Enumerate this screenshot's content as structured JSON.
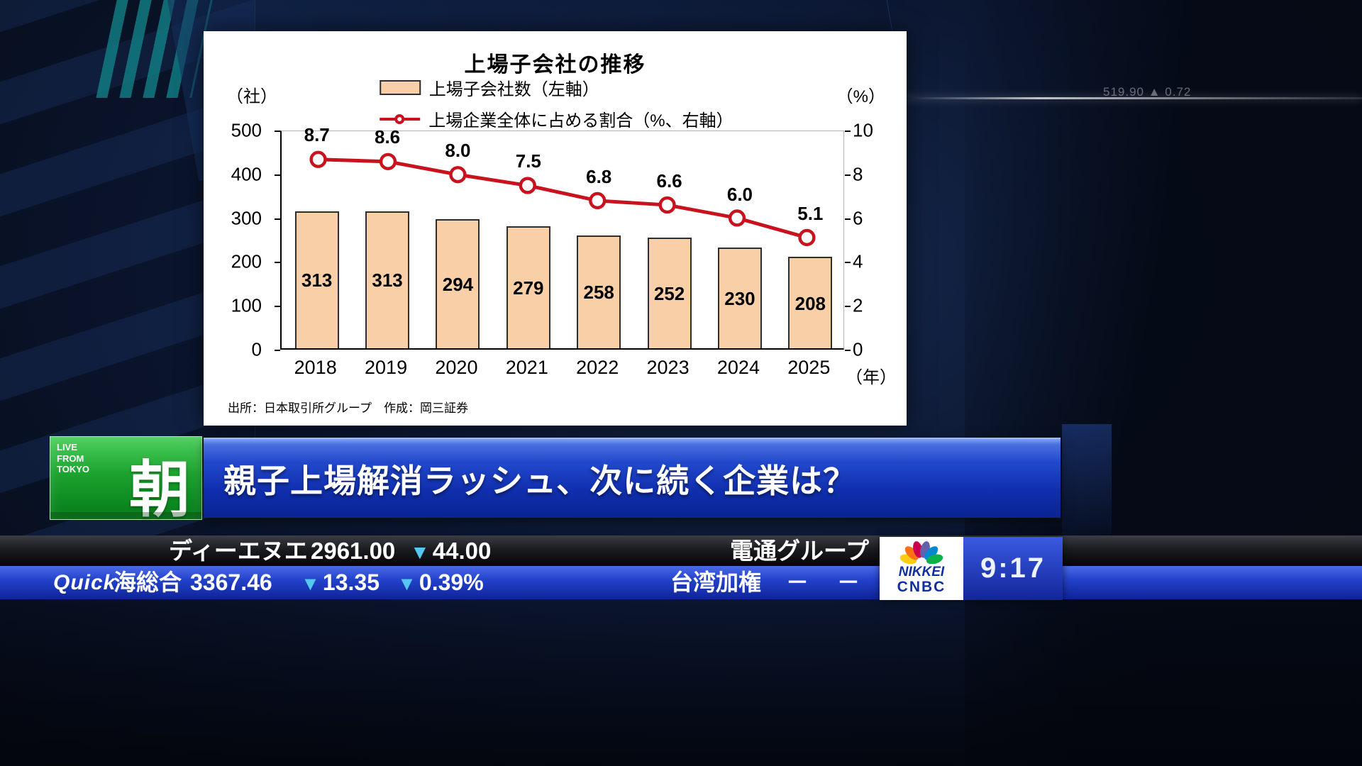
{
  "background": {
    "faint_ticker": "519.90 ▲ 0.72"
  },
  "chart_data": {
    "type": "bar",
    "title": "上場子会社の推移",
    "unit_left": "（社）",
    "unit_right": "（%）",
    "unit_x": "（年）",
    "source": "出所：日本取引所グループ　作成：岡三証券",
    "categories": [
      "2018",
      "2019",
      "2020",
      "2021",
      "2022",
      "2023",
      "2024",
      "2025"
    ],
    "series": [
      {
        "name": "上場子会社数（左軸）",
        "type": "bar",
        "axis": "left",
        "values": [
          313,
          313,
          294,
          279,
          258,
          252,
          230,
          208
        ]
      },
      {
        "name": "上場企業全体に占める割合（%、右軸）",
        "type": "line",
        "axis": "right",
        "values": [
          8.7,
          8.6,
          8.0,
          7.5,
          6.8,
          6.6,
          6.0,
          5.1
        ]
      }
    ],
    "left_axis": {
      "range": [
        0,
        500
      ],
      "ticks": [
        0,
        100,
        200,
        300,
        400,
        500
      ]
    },
    "right_axis": {
      "range": [
        0,
        10
      ],
      "ticks": [
        0,
        2,
        4,
        6,
        8,
        10
      ]
    },
    "legend_position": "top",
    "grid": false,
    "colors": {
      "bar": "#f9cfa8",
      "bar_border": "#2e2e2e",
      "line": "#c8121e"
    }
  },
  "live_badge": {
    "l1": "LIVE",
    "l2": "FROM",
    "l3": "TOKYO",
    "kanji": "朝"
  },
  "headline": {
    "text": "親子上場解消ラッシュ、次に続く企業は？"
  },
  "ticker_row1": {
    "name": "ディーエヌエ",
    "price": "2961.00",
    "change_icon": "▼",
    "change_value": "44.00",
    "right_name": "電通グループ"
  },
  "ticker_row2": {
    "logo": "Quick",
    "index_name": "海総合",
    "value": "3367.46",
    "change_icon": "▼",
    "change_value": "13.35",
    "pct_icon": "▼",
    "pct_value": "0.39%",
    "right_name": "台湾加権",
    "right_value": "－",
    "right_change": "－"
  },
  "clock": {
    "brand_top": "NIKKEI",
    "brand_bottom": "CNBC",
    "time": "9:17"
  },
  "colors": {
    "headline_bar": "#1535b8",
    "ticker_blue": "#1c3ec8",
    "ticker_dark": "#1b1c20",
    "down_triangle": "#55c8f2",
    "live_green": "#17a52e",
    "brand_navy": "#122fa0"
  }
}
